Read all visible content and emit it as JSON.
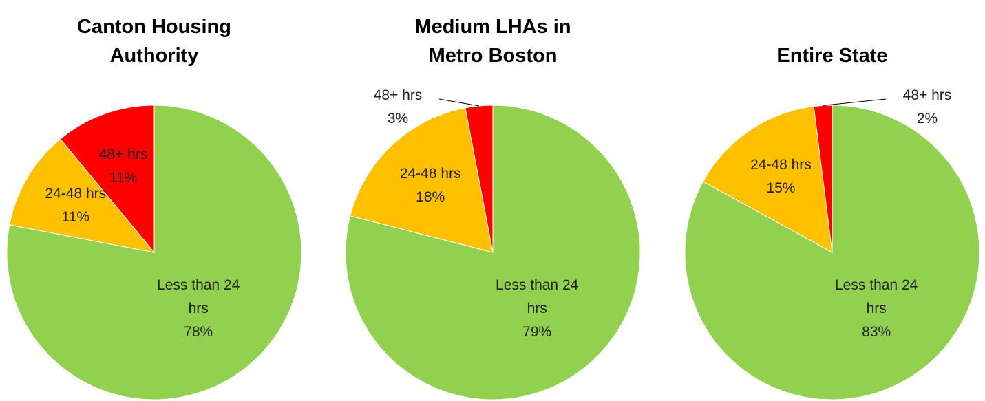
{
  "chart_data": [
    {
      "type": "pie",
      "title": "Canton Housing Authority",
      "categories": [
        "Less than 24 hrs",
        "24-48 hrs",
        "48+ hrs"
      ],
      "values": [
        78,
        11,
        11
      ],
      "value_labels": [
        "78%",
        "11%",
        "11%"
      ],
      "colors": [
        "#92d050",
        "#ffc000",
        "#ff0000"
      ]
    },
    {
      "type": "pie",
      "title": "Medium LHAs in Metro Boston",
      "categories": [
        "Less than 24 hrs",
        "24-48 hrs",
        "48+ hrs"
      ],
      "values": [
        79,
        18,
        3
      ],
      "value_labels": [
        "79%",
        "18%",
        "3%"
      ],
      "colors": [
        "#92d050",
        "#ffc000",
        "#ff0000"
      ]
    },
    {
      "type": "pie",
      "title": "Entire State",
      "categories": [
        "Less than 24 hrs",
        "24-48 hrs",
        "48+ hrs"
      ],
      "values": [
        83,
        15,
        2
      ],
      "value_labels": [
        "83%",
        "15%",
        "2%"
      ],
      "colors": [
        "#92d050",
        "#ffc000",
        "#ff0000"
      ]
    }
  ]
}
